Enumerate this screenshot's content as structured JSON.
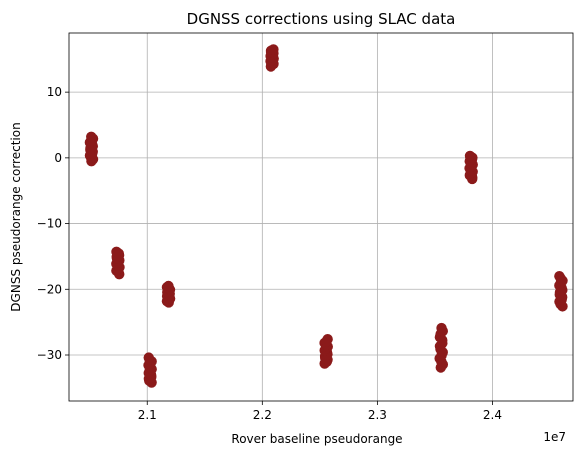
{
  "chart_data": {
    "type": "scatter",
    "title": "DGNSS corrections using SLAC data",
    "xlabel": "Rover baseline pseudorange",
    "ylabel": "DGNSS pseudorange correction",
    "x_offset_label": "1e7",
    "x_scale": 10000000,
    "xlim": [
      20320000.0,
      24700000.0
    ],
    "ylim": [
      -37,
      19
    ],
    "x_ticks": [
      21000000.0,
      22000000.0,
      23000000.0,
      24000000.0
    ],
    "x_tick_labels": [
      "2.1",
      "2.2",
      "2.3",
      "2.4"
    ],
    "y_ticks": [
      -30,
      -20,
      -10,
      0,
      10
    ],
    "y_tick_labels": [
      "−30",
      "−20",
      "−10",
      "0",
      "10"
    ],
    "grid": true,
    "marker_color": "#8b1a1a",
    "clusters": [
      {
        "x": 20515000.0,
        "y_min": -0.5,
        "y_max": 3.2
      },
      {
        "x": 20745000.0,
        "y_min": -17.7,
        "y_max": -14.3
      },
      {
        "x": 21025000.0,
        "y_min": -34.2,
        "y_max": -30.4
      },
      {
        "x": 21185000.0,
        "y_min": -22.0,
        "y_max": -19.5
      },
      {
        "x": 22085000.0,
        "y_min": 13.9,
        "y_max": 16.5
      },
      {
        "x": 22555000.0,
        "y_min": -31.3,
        "y_max": -27.6
      },
      {
        "x": 23555000.0,
        "y_min": -31.9,
        "y_max": -25.9
      },
      {
        "x": 23815000.0,
        "y_min": -3.2,
        "y_max": 0.3
      },
      {
        "x": 24595000.0,
        "y_min": -22.6,
        "y_max": -18.0
      }
    ]
  }
}
